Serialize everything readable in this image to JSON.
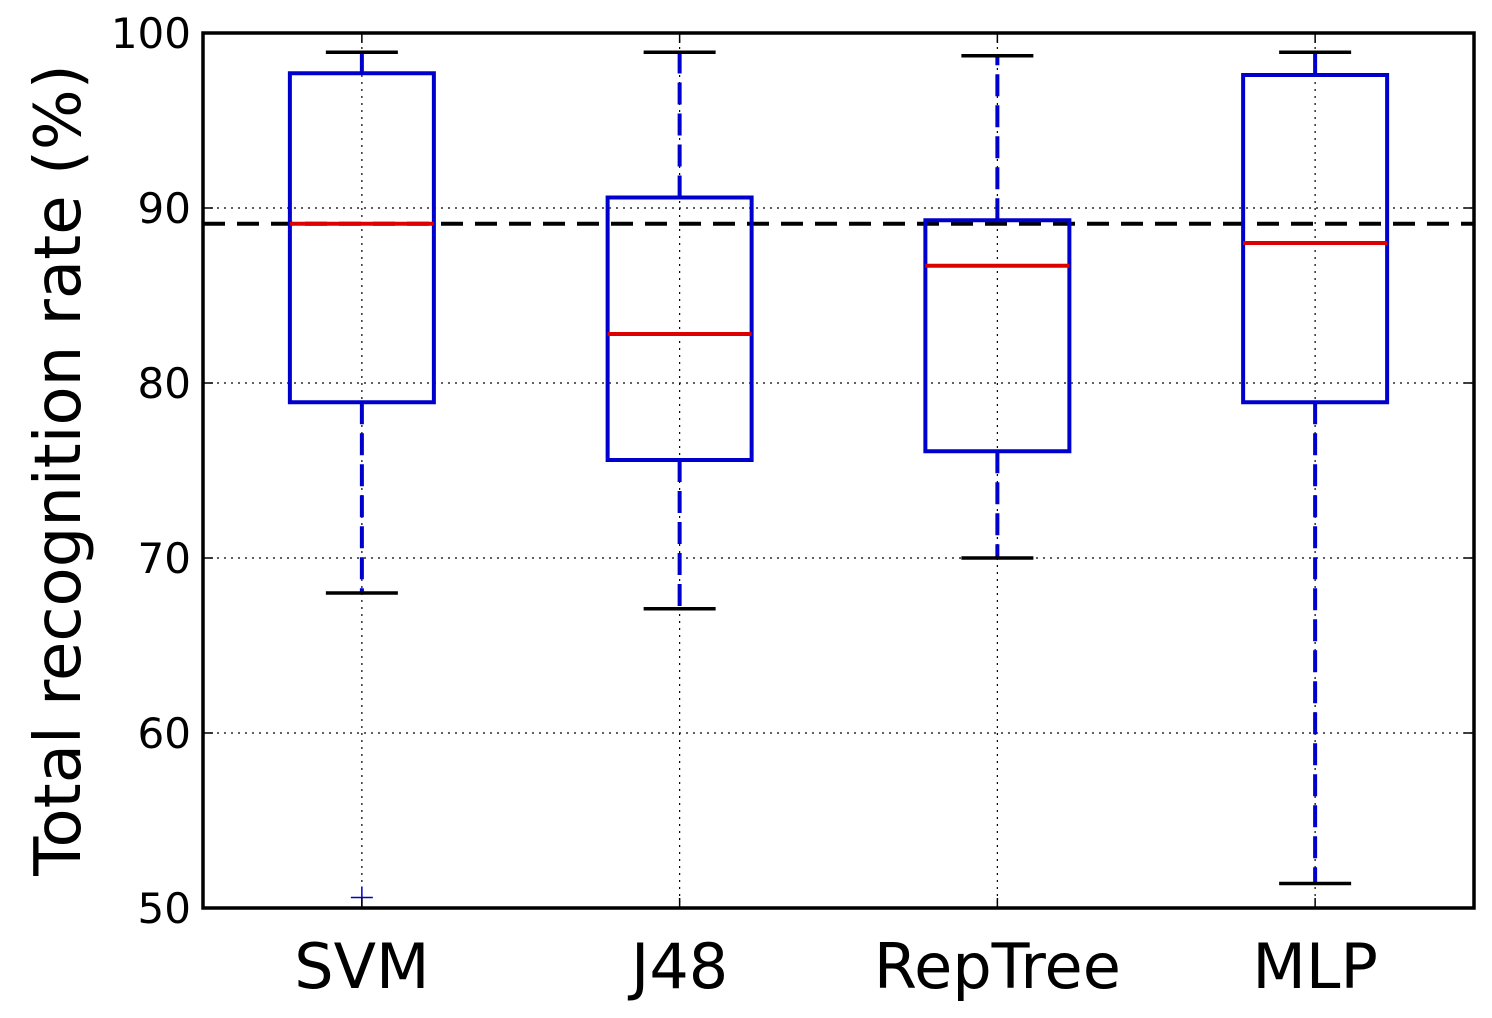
{
  "chart_data": {
    "type": "boxplot",
    "title": "",
    "xlabel": "",
    "ylabel": "Total recognition rate (%)",
    "ylim": [
      50,
      100
    ],
    "yticks": [
      50,
      60,
      70,
      80,
      90,
      100
    ],
    "grid": true,
    "categories": [
      "SVM",
      "J48",
      "RepTree",
      "MLP"
    ],
    "boxes": [
      {
        "name": "SVM",
        "whisker_low": 68.0,
        "q1": 78.9,
        "median": 89.1,
        "q3": 97.7,
        "whisker_high": 98.9,
        "outliers": [
          50.6
        ]
      },
      {
        "name": "J48",
        "whisker_low": 67.1,
        "q1": 75.6,
        "median": 82.8,
        "q3": 90.6,
        "whisker_high": 98.9,
        "outliers": []
      },
      {
        "name": "RepTree",
        "whisker_low": 70.0,
        "q1": 76.1,
        "median": 86.7,
        "q3": 89.3,
        "whisker_high": 98.7,
        "outliers": []
      },
      {
        "name": "MLP",
        "whisker_low": 51.4,
        "q1": 78.9,
        "median": 88.0,
        "q3": 97.6,
        "whisker_high": 98.9,
        "outliers": []
      }
    ],
    "reference_line": {
      "value": 89.1,
      "style": "dashed"
    },
    "colors": {
      "box": "#0000cc",
      "median": "#dd0000",
      "whisker": "#0000cc",
      "cap": "#000000",
      "reference": "#000000",
      "outlier": "#0000cc"
    }
  }
}
